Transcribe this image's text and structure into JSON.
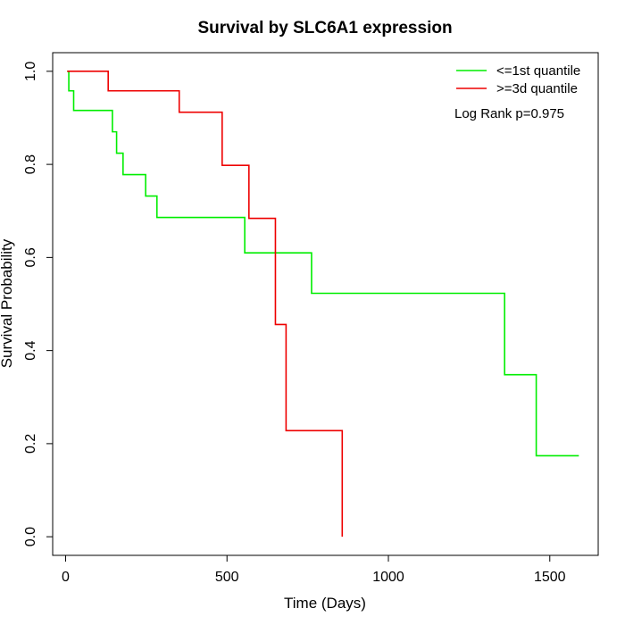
{
  "chart_data": {
    "type": "line",
    "title": "Survival by SLC6A1 expression",
    "xlabel": "Time (Days)",
    "ylabel": "Survival Probability",
    "xlim": [
      -40,
      1650
    ],
    "ylim": [
      -0.04,
      1.04
    ],
    "x_ticks": [
      0,
      500,
      1000,
      1500
    ],
    "y_ticks": [
      0.0,
      0.2,
      0.4,
      0.6,
      0.8,
      1.0
    ],
    "x_tick_labels": [
      "0",
      "500",
      "1000",
      "1500"
    ],
    "y_tick_labels": [
      "0.0",
      "0.2",
      "0.4",
      "0.6",
      "0.8",
      "1.0"
    ],
    "grid": false,
    "legend_position": "top-right",
    "annotation": "Log Rank p=0.975",
    "series": [
      {
        "name": "<=1st quantile",
        "color": "#00ee00",
        "steps": [
          [
            5,
            1.0
          ],
          [
            10,
            0.958
          ],
          [
            25,
            0.916
          ],
          [
            145,
            0.87
          ],
          [
            158,
            0.824
          ],
          [
            178,
            0.778
          ],
          [
            248,
            0.732
          ],
          [
            283,
            0.686
          ],
          [
            555,
            0.61
          ],
          [
            762,
            0.523
          ],
          [
            1360,
            0.348
          ],
          [
            1458,
            0.174
          ],
          [
            1590,
            0.174
          ]
        ]
      },
      {
        "name": ">=3d quantile",
        "color": "#ee0000",
        "steps": [
          [
            5,
            1.0
          ],
          [
            132,
            0.958
          ],
          [
            352,
            0.912
          ],
          [
            485,
            0.798
          ],
          [
            568,
            0.684
          ],
          [
            650,
            0.456
          ],
          [
            683,
            0.228
          ],
          [
            857,
            0.228
          ],
          [
            857,
            0.0
          ]
        ]
      }
    ]
  }
}
